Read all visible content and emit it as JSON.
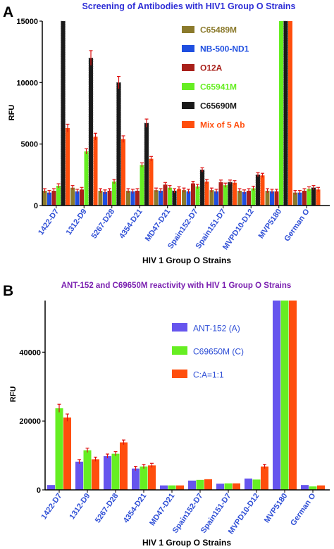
{
  "chart_data": [
    {
      "panel_label": "A",
      "type": "bar",
      "title": "Screening of Antibodies with HIV1 Group O Strains",
      "xlabel": "HIV 1 Group O Strains",
      "ylabel": "RFU",
      "ylim": [
        0,
        15000
      ],
      "yticks": [
        0,
        5000,
        10000,
        15000
      ],
      "grid": false,
      "legend_position": "top-right",
      "categories": [
        "1422-D7",
        "1312-D9",
        "5267-D28",
        "4354-D21",
        "MD47-D21",
        "Spain152-D7",
        "Spain151-D7",
        "MVPD10-D12",
        "MVP5180",
        "German O"
      ],
      "series": [
        {
          "name": "C65489M",
          "color": "#8b7a2c",
          "values": [
            1200,
            1450,
            1200,
            1200,
            1250,
            1250,
            1250,
            1200,
            1200,
            1050
          ]
        },
        {
          "name": "NB-500-ND1",
          "color": "#1f4fe0",
          "values": [
            1050,
            1150,
            1100,
            1150,
            1200,
            1150,
            1150,
            1100,
            1150,
            1050
          ]
        },
        {
          "name": "O12A",
          "color": "#a8201a",
          "values": [
            1200,
            1300,
            1200,
            1200,
            1700,
            1800,
            1900,
            1200,
            1150,
            1200
          ]
        },
        {
          "name": "C65941M",
          "color": "#66ee22",
          "values": [
            1600,
            4400,
            1950,
            3300,
            1450,
            1550,
            1650,
            1400,
            15000,
            1350
          ]
        },
        {
          "name": "C65690M",
          "color": "#1a1a1a",
          "values": [
            15000,
            12000,
            10000,
            6700,
            1200,
            2900,
            1900,
            2500,
            15000,
            1450
          ]
        },
        {
          "name": "Mix of 5 Ab",
          "color": "#ff4e0d",
          "values": [
            6300,
            5600,
            5400,
            3800,
            1350,
            1950,
            1850,
            2450,
            15000,
            1300
          ]
        }
      ]
    },
    {
      "panel_label": "B",
      "type": "bar",
      "title": "ANT-152 and C69650M reactivity with HIV 1 Group O Strains",
      "xlabel": "HIV 1 Group O Strains",
      "ylabel": "RFU",
      "ylim": [
        0,
        55000
      ],
      "yticks": [
        0,
        20000,
        40000
      ],
      "grid": false,
      "legend_position": "top-center",
      "categories": [
        "1422-D7",
        "1312-D9",
        "5267-D28",
        "4354-D21",
        "MD47-D21",
        "Spain152-D7",
        "Spain151-D7",
        "MVPD10-D12",
        "MVP5180",
        "German O"
      ],
      "series": [
        {
          "name": "ANT-152 (A)",
          "color": "#6655ee",
          "values": [
            1400,
            8200,
            9800,
            6200,
            1300,
            2700,
            1800,
            3300,
            55000,
            1400
          ]
        },
        {
          "name": "C69650M (C)",
          "color": "#66ee22",
          "values": [
            23700,
            11500,
            10500,
            6800,
            1300,
            2900,
            1900,
            3000,
            55000,
            1000
          ]
        },
        {
          "name": "C:A=1:1",
          "color": "#ff4e0d",
          "values": [
            21000,
            8900,
            13800,
            7100,
            1300,
            3100,
            1900,
            6800,
            55000,
            1300
          ]
        }
      ]
    }
  ]
}
